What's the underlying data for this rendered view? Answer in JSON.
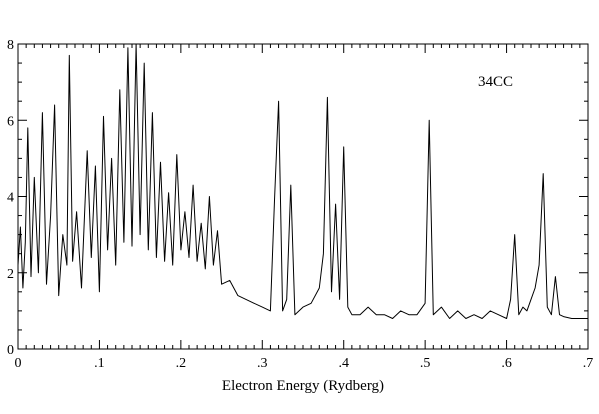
{
  "chart_data": {
    "type": "line",
    "title": "",
    "xlabel": "Electron Energy (Rydberg)",
    "ylabel": "",
    "xlim": [
      0,
      0.7
    ],
    "ylim": [
      0,
      8
    ],
    "x_ticks": [
      0,
      0.1,
      0.2,
      0.3,
      0.4,
      0.5,
      0.6,
      0.7
    ],
    "x_tick_labels": [
      "0",
      ".1",
      ".2",
      ".3",
      ".4",
      ".5",
      ".6",
      ".7"
    ],
    "y_ticks": [
      0,
      2,
      4,
      6,
      8
    ],
    "y_tick_labels": [
      "0",
      "2",
      "4",
      "6",
      "8"
    ],
    "grid": false,
    "legend": "none",
    "annotation": "34CC",
    "color": "#000000",
    "series": [
      {
        "x": [
          0.0,
          0.003,
          0.006,
          0.009,
          0.012,
          0.016,
          0.02,
          0.025,
          0.03,
          0.035,
          0.04,
          0.045,
          0.05,
          0.055,
          0.06,
          0.063,
          0.067,
          0.072,
          0.078,
          0.085,
          0.09,
          0.095,
          0.1,
          0.105,
          0.11,
          0.115,
          0.12,
          0.125,
          0.13,
          0.135,
          0.14,
          0.145,
          0.15,
          0.155,
          0.16,
          0.165,
          0.17,
          0.175,
          0.18,
          0.185,
          0.19,
          0.195,
          0.2,
          0.205,
          0.21,
          0.215,
          0.22,
          0.225,
          0.23,
          0.235,
          0.24,
          0.245,
          0.25,
          0.26,
          0.27,
          0.28,
          0.29,
          0.3,
          0.31,
          0.315,
          0.32,
          0.325,
          0.33,
          0.335,
          0.34,
          0.35,
          0.36,
          0.37,
          0.375,
          0.38,
          0.385,
          0.39,
          0.395,
          0.4,
          0.405,
          0.41,
          0.42,
          0.43,
          0.44,
          0.45,
          0.46,
          0.47,
          0.48,
          0.49,
          0.5,
          0.505,
          0.51,
          0.52,
          0.53,
          0.54,
          0.55,
          0.56,
          0.57,
          0.58,
          0.59,
          0.6,
          0.605,
          0.61,
          0.615,
          0.62,
          0.625,
          0.63,
          0.635,
          0.64,
          0.645,
          0.65,
          0.655,
          0.66,
          0.665,
          0.67,
          0.68,
          0.69,
          0.7
        ],
        "y": [
          2.2,
          3.2,
          1.6,
          2.8,
          5.8,
          1.9,
          4.5,
          2.0,
          6.2,
          1.7,
          3.5,
          6.4,
          1.4,
          3.0,
          2.2,
          7.7,
          2.3,
          3.6,
          1.6,
          5.2,
          2.4,
          4.8,
          1.5,
          6.1,
          2.6,
          5.0,
          2.2,
          6.8,
          2.8,
          7.9,
          2.7,
          8.0,
          3.0,
          7.5,
          2.6,
          6.2,
          2.4,
          4.9,
          2.3,
          4.1,
          2.2,
          5.1,
          2.6,
          3.6,
          2.4,
          4.3,
          2.3,
          3.3,
          2.1,
          4.0,
          2.2,
          3.1,
          1.7,
          1.8,
          1.4,
          1.3,
          1.2,
          1.1,
          1.0,
          3.9,
          6.5,
          1.0,
          1.3,
          4.3,
          0.9,
          1.1,
          1.2,
          1.6,
          2.5,
          6.6,
          1.5,
          3.8,
          1.3,
          5.3,
          1.1,
          0.9,
          0.9,
          1.1,
          0.9,
          0.9,
          0.8,
          1.0,
          0.9,
          0.9,
          1.2,
          6.0,
          0.9,
          1.1,
          0.8,
          1.0,
          0.8,
          0.9,
          0.8,
          1.0,
          0.9,
          0.8,
          1.3,
          3.0,
          0.9,
          1.1,
          1.0,
          1.3,
          1.6,
          2.2,
          4.6,
          1.1,
          0.9,
          1.9,
          0.9,
          0.85,
          0.8,
          0.8,
          0.8
        ]
      }
    ]
  }
}
